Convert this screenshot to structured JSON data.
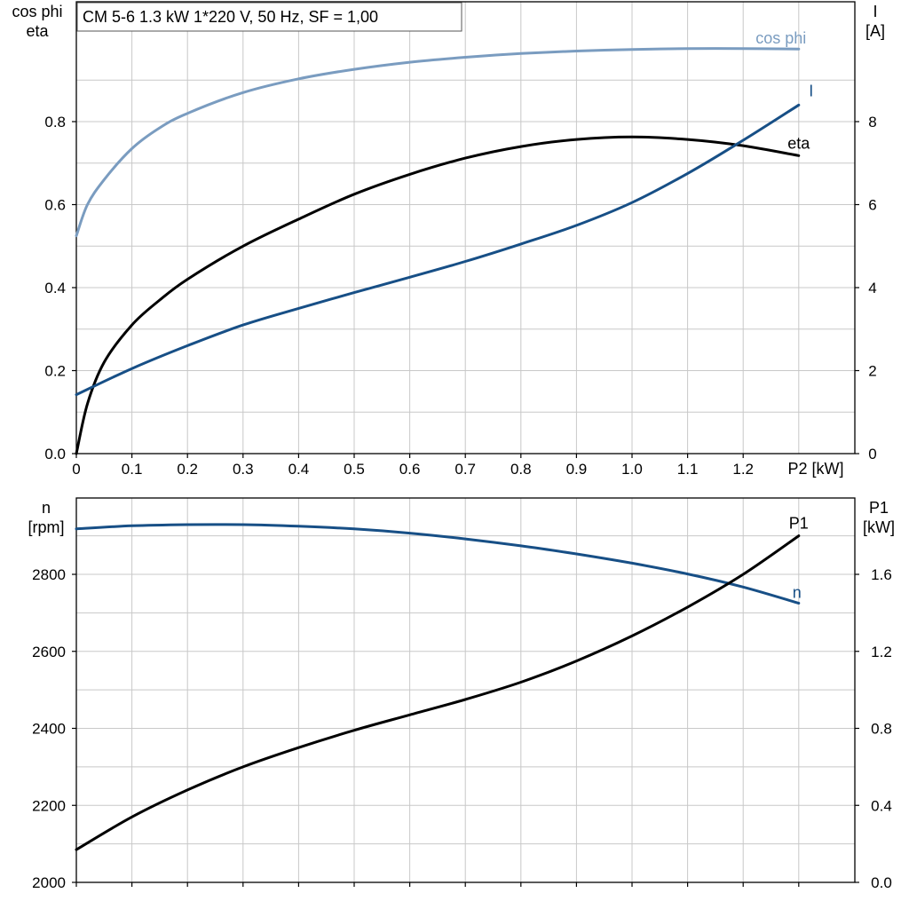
{
  "chart_data": [
    {
      "type": "line",
      "title": "CM 5-6   1.3 kW   1*220 V, 50 Hz, SF = 1,00",
      "xlabel": "P2 [kW]",
      "xlim": [
        0,
        1.4
      ],
      "x_ticks": [
        "0",
        "0.1",
        "0.2",
        "0.3",
        "0.4",
        "0.5",
        "0.6",
        "0.7",
        "0.8",
        "0.9",
        "1.0",
        "1.1",
        "1.2"
      ],
      "ylabel_left": "cos phi\neta",
      "ylim_left": [
        0,
        1.0
      ],
      "y_left_ticks": [
        "0.0",
        "0.2",
        "0.4",
        "0.6",
        "0.8"
      ],
      "ylabel_right": "I\n[A]",
      "ylim_right": [
        0,
        10
      ],
      "y_right_ticks": [
        "0",
        "2",
        "4",
        "6",
        "8"
      ],
      "grid": true,
      "series": [
        {
          "name": "cos phi",
          "axis": "left",
          "color": "#7a9cc0",
          "x": [
            0,
            0.02,
            0.05,
            0.1,
            0.15,
            0.2,
            0.3,
            0.4,
            0.5,
            0.6,
            0.7,
            0.8,
            0.9,
            1.0,
            1.1,
            1.2,
            1.3
          ],
          "y": [
            0.525,
            0.6,
            0.66,
            0.735,
            0.785,
            0.82,
            0.87,
            0.903,
            0.926,
            0.943,
            0.955,
            0.964,
            0.97,
            0.974,
            0.976,
            0.976,
            0.975
          ]
        },
        {
          "name": "eta",
          "axis": "left",
          "color": "#000000",
          "x": [
            0,
            0.02,
            0.05,
            0.1,
            0.15,
            0.2,
            0.3,
            0.4,
            0.5,
            0.6,
            0.7,
            0.8,
            0.9,
            1.0,
            1.1,
            1.2,
            1.3
          ],
          "y": [
            0.0,
            0.12,
            0.22,
            0.31,
            0.37,
            0.42,
            0.5,
            0.565,
            0.625,
            0.673,
            0.712,
            0.74,
            0.757,
            0.763,
            0.757,
            0.742,
            0.718
          ]
        },
        {
          "name": "I",
          "axis": "right",
          "color": "#174f86",
          "x": [
            0,
            0.1,
            0.2,
            0.3,
            0.4,
            0.5,
            0.6,
            0.7,
            0.8,
            0.9,
            1.0,
            1.1,
            1.2,
            1.3
          ],
          "y": [
            1.42,
            2.05,
            2.6,
            3.1,
            3.5,
            3.88,
            4.25,
            4.63,
            5.05,
            5.5,
            6.05,
            6.75,
            7.55,
            8.4
          ]
        }
      ]
    },
    {
      "type": "line",
      "xlim": [
        0,
        1.4
      ],
      "ylabel_left": "n\n[rpm]",
      "ylim_left": [
        2000,
        2950
      ],
      "y_left_ticks": [
        "2000",
        "2200",
        "2400",
        "2600",
        "2800"
      ],
      "ylabel_right": "P1\n[kW]",
      "ylim_right": [
        0,
        1.9
      ],
      "y_right_ticks": [
        "0.0",
        "0.4",
        "0.8",
        "1.2",
        "1.6"
      ],
      "grid": true,
      "series": [
        {
          "name": "n",
          "axis": "left",
          "color": "#174f86",
          "x": [
            0,
            0.1,
            0.2,
            0.3,
            0.4,
            0.5,
            0.6,
            0.7,
            0.8,
            0.9,
            1.0,
            1.1,
            1.2,
            1.3
          ],
          "y": [
            2918,
            2926,
            2929,
            2929,
            2925,
            2918,
            2907,
            2892,
            2874,
            2853,
            2829,
            2801,
            2767,
            2725
          ]
        },
        {
          "name": "P1",
          "axis": "right",
          "color": "#000000",
          "x": [
            0,
            0.1,
            0.2,
            0.3,
            0.4,
            0.5,
            0.6,
            0.7,
            0.8,
            0.9,
            1.0,
            1.1,
            1.2,
            1.3
          ],
          "y": [
            0.17,
            0.34,
            0.48,
            0.6,
            0.7,
            0.79,
            0.87,
            0.95,
            1.04,
            1.15,
            1.28,
            1.43,
            1.6,
            1.8
          ]
        }
      ]
    }
  ]
}
